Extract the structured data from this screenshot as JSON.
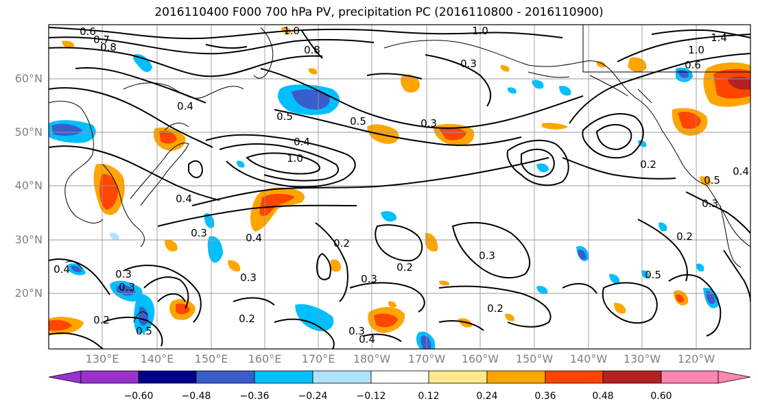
{
  "title": "2016110400 F000 700 hPa PV, precipitation PC (2016110800 - 2016110900)",
  "latitude_labels": [
    "60°N",
    "50°N",
    "40°N",
    "30°N",
    "20°N"
  ],
  "longitude_labels": [
    "130°E",
    "140°E",
    "150°E",
    "160°E",
    "170°E",
    "180°W",
    "170°W",
    "160°W",
    "150°W",
    "140°W",
    "130°W",
    "120°W"
  ],
  "colorbar": {
    "tick_labels": [
      "−0.60",
      "−0.48",
      "−0.36",
      "−0.24",
      "−0.12",
      "0.12",
      "0.24",
      "0.36",
      "0.48",
      "0.60"
    ],
    "colors": [
      "#9932cc",
      "#00008b",
      "#3a5ccc",
      "#00bfff",
      "#b0e2ff",
      "#ffffff",
      "#ffe98a",
      "#ffa500",
      "#ff4500",
      "#b22222",
      "#ff86b0"
    ]
  },
  "contour_labels": [
    "0.6",
    "0.7",
    "0.8",
    "1.0",
    "1.0",
    "0.8",
    "0.3",
    "0.4",
    "0.5",
    "0.5",
    "0.4",
    "0.3",
    "1.0",
    "0.4",
    "0.2",
    "0.3",
    "0.4",
    "0.3",
    "0.2",
    "0.2",
    "0.3",
    "0.3",
    "0.2",
    "0.3",
    "0.2",
    "0.5",
    "0.3",
    "0.2",
    "0.4",
    "0.5",
    "0.6",
    "1.0",
    "1.4",
    "0.3",
    "0.4",
    "0.5",
    "0.2",
    "0.3",
    "0.4"
  ],
  "shading_colors": {
    "light_orange": "#ffa500",
    "orange_red": "#ff4500",
    "dark_red": "#b22222",
    "yellow": "#ffe98a",
    "sky_blue": "#00bfff",
    "royal_blue": "#3a5ccc",
    "pale_blue": "#b0e2ff"
  }
}
